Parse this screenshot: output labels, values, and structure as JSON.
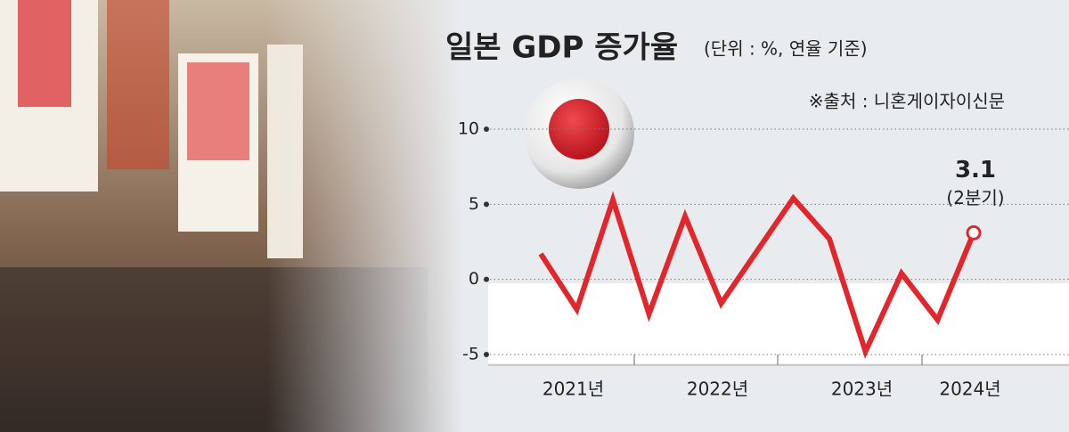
{
  "chart_data": {
    "type": "line",
    "title": "일본 GDP 증가율",
    "subtitle": "(단위 : %, 연율 기준)",
    "source": "※출처 : 니혼게이자이신문",
    "categories": [
      null,
      "2021년",
      null,
      null,
      null,
      "2022년",
      null,
      null,
      null,
      "2023년",
      null,
      null,
      "2024년"
    ],
    "series": [
      {
        "name": "GDP 증가율",
        "color": "#e3262b",
        "values": [
          1.7,
          -2.0,
          5.3,
          -2.3,
          4.2,
          -1.6,
          1.9,
          5.4,
          2.7,
          -4.8,
          0.4,
          -2.7,
          3.1
        ]
      }
    ],
    "annotations": [
      {
        "label": "3.1",
        "note": "(2분기)"
      }
    ],
    "ylim": [
      -5,
      10
    ],
    "yticks": [
      -5,
      0,
      5,
      10
    ],
    "grid": true
  }
}
